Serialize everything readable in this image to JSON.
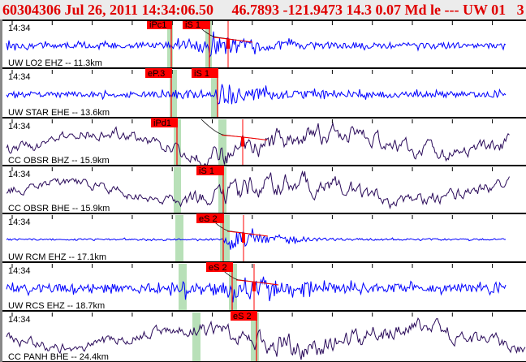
{
  "header": {
    "title": "60304306 Jul 26, 2011 14:34:06.50     46.7893 -121.9473 14.3 0.07 Md le --- UW 01   3",
    "color": "#e00000"
  },
  "colors": {
    "short_period_trace": "#0000ff",
    "broadband_trace": "#2a0a5a",
    "pick_flag": "#ff0000",
    "pick_window": "#b8e0b8",
    "separator": "#000000"
  },
  "panels": [
    {
      "time_label": "14:34",
      "station_label": "UW LO2 EHZ -- 11.3km",
      "trace": "short_period",
      "picks": [
        "iPc1",
        "iS 1"
      ],
      "coda": true
    },
    {
      "time_label": "14:34",
      "station_label": "UW STAR EHE -- 13.6km",
      "trace": "short_period",
      "picks": [
        "eP.3",
        "iS 1"
      ],
      "coda": false
    },
    {
      "time_label": "14:34",
      "station_label": "CC OBSR BHZ -- 15.9km",
      "trace": "broadband",
      "picks": [
        "iPd1"
      ],
      "coda": true
    },
    {
      "time_label": "14:34",
      "station_label": "CC OBSR BHE -- 15.9km",
      "trace": "broadband",
      "picks": [
        "iS 1"
      ],
      "coda": false
    },
    {
      "time_label": "14:34",
      "station_label": "UW RCM EHZ -- 17.1km",
      "trace": "short_period",
      "picks": [
        "eS 2"
      ],
      "coda": true
    },
    {
      "time_label": "14:34",
      "station_label": "UW RCS EHZ -- 18.7km",
      "trace": "short_period",
      "picks": [
        "eS 2"
      ],
      "coda": true
    },
    {
      "time_label": "14:34",
      "station_label": "CC PANH BHE -- 24.4km",
      "trace": "broadband",
      "picks": [
        "eS 2"
      ],
      "coda": false
    }
  ]
}
